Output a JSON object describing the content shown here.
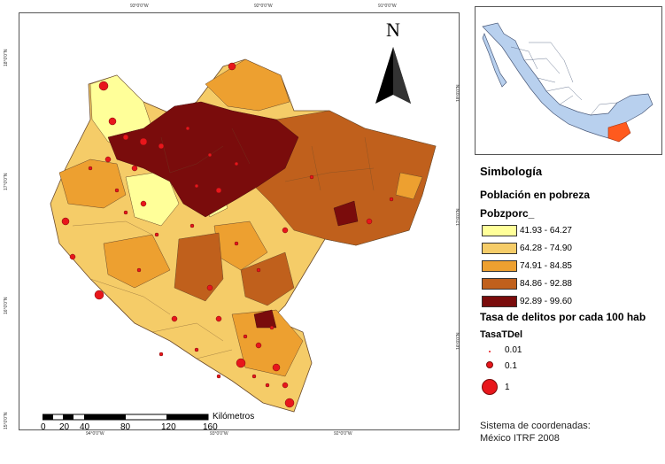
{
  "map": {
    "north_label": "N",
    "scale": {
      "unit_label": "Kilómetros",
      "ticks": [
        "0",
        "20",
        "40",
        "80",
        "120",
        "160"
      ]
    },
    "top_ticks": [
      "93°0'0\"W",
      "92°0'0\"W",
      "91°0'0\"W"
    ],
    "bottom_ticks": [
      "94°0'0\"W",
      "93°0'0\"W",
      "92°0'0\"W"
    ],
    "left_ticks": [
      "18°0'0\"N",
      "17°0'0\"N",
      "16°0'0\"N",
      "15°0'0\"N"
    ],
    "right_ticks": [
      "18°0'0\"N",
      "17°0'0\"N",
      "16°0'0\"N"
    ]
  },
  "legend": {
    "title": "Simbología",
    "poverty_title": "Población en pobreza",
    "poverty_field": "Pobzporc_",
    "classes": [
      {
        "label": "41.93 - 64.27",
        "color": "#ffff99"
      },
      {
        "label": "64.28 - 74.90",
        "color": "#f5cc68"
      },
      {
        "label": "74.91 - 84.85",
        "color": "#eda030"
      },
      {
        "label": "84.86 - 92.88",
        "color": "#c0601c"
      },
      {
        "label": "92.89 - 99.60",
        "color": "#7a0c0c"
      }
    ],
    "crime_title": "Tasa de delitos por cada 100 hab",
    "crime_field": "TasaTDel",
    "crime_classes": [
      {
        "label": "0.01"
      },
      {
        "label": "0.1"
      },
      {
        "label": "1"
      }
    ],
    "crime_color": "#e8161b"
  },
  "coordinate_system": {
    "line1": "Sistema de coordenadas:",
    "line2": "México ITRF 2008"
  },
  "inset": {
    "country_color": "#b8d0ee",
    "highlight_color": "#ff5a1e"
  }
}
